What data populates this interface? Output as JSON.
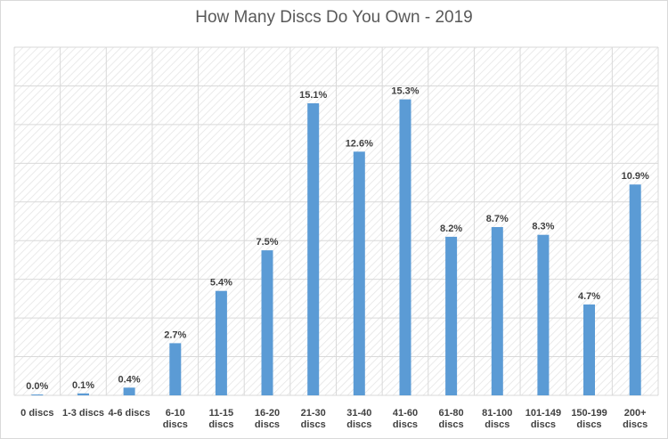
{
  "chart_data": {
    "type": "bar",
    "title": "How Many Discs Do You Own - 2019",
    "xlabel": "",
    "ylabel": "",
    "categories": [
      [
        "0 discs"
      ],
      [
        "1-3 discs"
      ],
      [
        "4-6 discs"
      ],
      [
        "6-10",
        "discs"
      ],
      [
        "11-15",
        "discs"
      ],
      [
        "16-20",
        "discs"
      ],
      [
        "21-30",
        "discs"
      ],
      [
        "31-40",
        "discs"
      ],
      [
        "41-60",
        "discs"
      ],
      [
        "61-80",
        "discs"
      ],
      [
        "81-100",
        "discs"
      ],
      [
        "101-149",
        "discs"
      ],
      [
        "150-199",
        "discs"
      ],
      [
        "200+",
        "discs"
      ]
    ],
    "values": [
      0.0,
      0.1,
      0.4,
      2.7,
      5.4,
      7.5,
      15.1,
      12.6,
      15.3,
      8.2,
      8.7,
      8.3,
      4.7,
      10.9
    ],
    "value_labels": [
      "0.0%",
      "0.1%",
      "0.4%",
      "2.7%",
      "5.4%",
      "7.5%",
      "15.1%",
      "12.6%",
      "15.3%",
      "8.2%",
      "8.7%",
      "8.3%",
      "4.7%",
      "10.9%"
    ],
    "ylim": [
      0,
      18
    ],
    "y_gridline_step": 2,
    "grid": true,
    "legend": "none",
    "colors": {
      "bar": "#5b9bd5",
      "grid": "#d9d9d9",
      "plot_hatch": "#e4e4e4"
    }
  }
}
